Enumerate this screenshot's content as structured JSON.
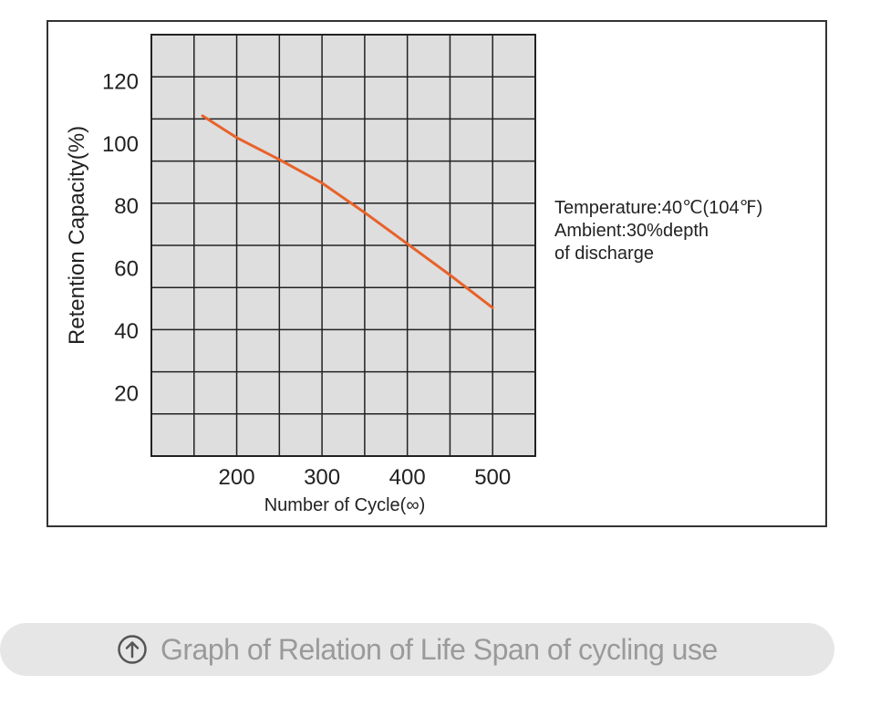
{
  "chart_data": {
    "type": "line",
    "title": "",
    "xlabel": "Number of Cycle(∞)",
    "ylabel": "Retention Capacity(%)",
    "x_ticks": [
      200,
      300,
      400,
      500
    ],
    "y_ticks": [
      20,
      40,
      60,
      80,
      100,
      120
    ],
    "xlim": [
      100,
      550
    ],
    "ylim": [
      0,
      135
    ],
    "grid": true,
    "series": [
      {
        "color": "#e8622a",
        "x": [
          160,
          200,
          250,
          300,
          350,
          400,
          450,
          500
        ],
        "y": [
          109,
          102,
          95,
          87.5,
          78,
          68,
          58,
          47.5
        ]
      }
    ]
  },
  "note": {
    "line1": "Temperature:40℃(104℉)",
    "line2": "Ambient:30%depth",
    "line3": "of discharge"
  },
  "caption": {
    "icon": "circle-up-arrow-icon",
    "text": "Graph of Relation of Life Span of cycling use"
  },
  "colors": {
    "plot_bg": "#dedede",
    "grid": "#222222",
    "line": "#e8622a",
    "caption_bg": "#e6e6e6",
    "caption_text": "#9a9a9a"
  }
}
